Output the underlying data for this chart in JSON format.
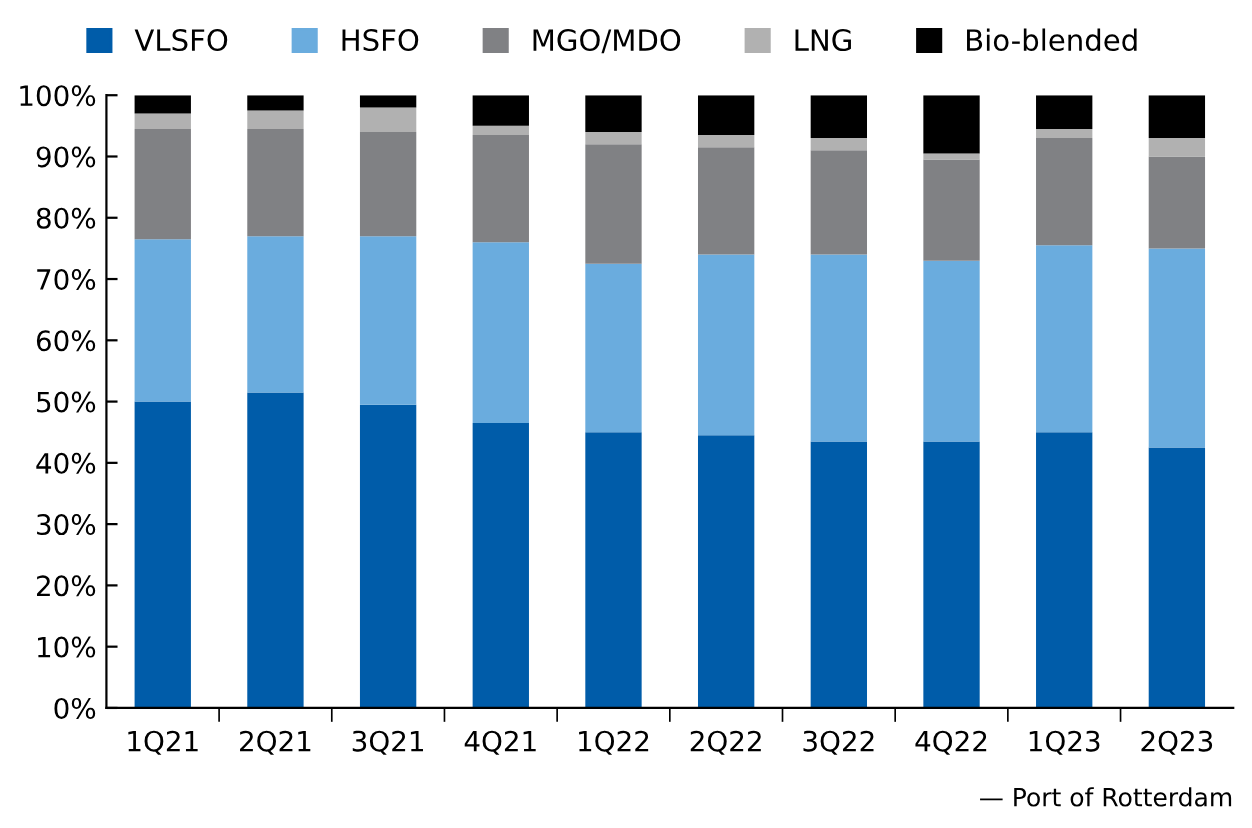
{
  "chart_data": {
    "type": "bar",
    "stacked": true,
    "categories": [
      "1Q21",
      "2Q21",
      "3Q21",
      "4Q21",
      "1Q22",
      "2Q22",
      "3Q22",
      "4Q22",
      "1Q23",
      "2Q23"
    ],
    "series": [
      {
        "name": "VLSFO",
        "color": "#005ca9",
        "values": [
          50,
          51.5,
          49.5,
          46.5,
          45,
          44.5,
          43.5,
          43.5,
          45,
          42.5
        ]
      },
      {
        "name": "HSFO",
        "color": "#6aacde",
        "values": [
          26.5,
          25.5,
          27.5,
          29.5,
          27.5,
          29.5,
          30.5,
          29.5,
          30.5,
          32.5
        ]
      },
      {
        "name": "MGO/MDO",
        "color": "#808184",
        "values": [
          18,
          17.5,
          17,
          17.5,
          19.5,
          17.5,
          17,
          16.5,
          17.5,
          15
        ]
      },
      {
        "name": "LNG",
        "color": "#b1b1b1",
        "values": [
          2.5,
          3,
          4,
          1.5,
          2,
          2,
          2,
          1,
          1.5,
          3
        ]
      },
      {
        "name": "Bio-blended",
        "color": "#000000",
        "values": [
          3,
          2.5,
          2,
          5,
          6,
          6.5,
          7,
          9.5,
          5.5,
          7
        ]
      }
    ],
    "ylim": [
      0,
      100
    ],
    "yticks": [
      {
        "value": 0,
        "label": "0%"
      },
      {
        "value": 10,
        "label": "10%"
      },
      {
        "value": 20,
        "label": "20%"
      },
      {
        "value": 30,
        "label": "30%"
      },
      {
        "value": 40,
        "label": "40%"
      },
      {
        "value": 50,
        "label": "50%"
      },
      {
        "value": 60,
        "label": "60%"
      },
      {
        "value": 70,
        "label": "70%"
      },
      {
        "value": 80,
        "label": "80%"
      },
      {
        "value": 90,
        "label": "90%"
      },
      {
        "value": 100,
        "label": "100%"
      }
    ],
    "grid": false,
    "legend": "top",
    "annotations": [
      "— Port of Rotterdam"
    ]
  }
}
